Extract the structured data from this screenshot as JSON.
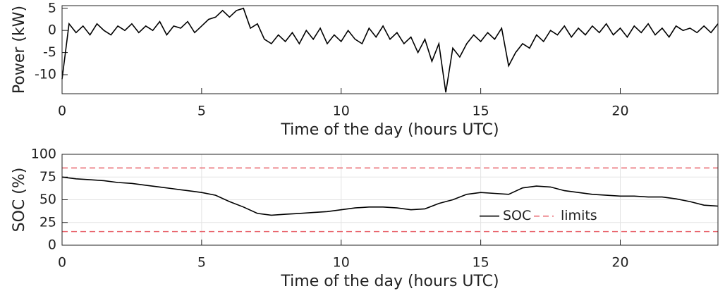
{
  "chart_data": [
    {
      "type": "line",
      "xlabel": "Time of the day (hours UTC)",
      "ylabel": "Power (kW)",
      "xlim": [
        0,
        23.5
      ],
      "xticks": [
        0,
        5,
        10,
        15,
        20
      ],
      "ylim": [
        -14.3,
        5.6
      ],
      "yticks": [
        -10,
        -5,
        0,
        5
      ],
      "grid": false,
      "x": [
        0,
        0.25,
        0.5,
        0.75,
        1,
        1.25,
        1.5,
        1.75,
        2,
        2.25,
        2.5,
        2.75,
        3,
        3.25,
        3.5,
        3.75,
        4,
        4.25,
        4.5,
        4.75,
        5,
        5.25,
        5.5,
        5.75,
        6,
        6.25,
        6.5,
        6.75,
        7,
        7.25,
        7.5,
        7.75,
        8,
        8.25,
        8.5,
        8.75,
        9,
        9.25,
        9.5,
        9.75,
        10,
        10.25,
        10.5,
        10.75,
        11,
        11.25,
        11.5,
        11.75,
        12,
        12.25,
        12.5,
        12.75,
        13,
        13.25,
        13.5,
        13.75,
        14,
        14.25,
        14.5,
        14.75,
        15,
        15.25,
        15.5,
        15.75,
        16,
        16.25,
        16.5,
        16.75,
        17,
        17.25,
        17.5,
        17.75,
        18,
        18.25,
        18.5,
        18.75,
        19,
        19.25,
        19.5,
        19.75,
        20,
        20.25,
        20.5,
        20.75,
        21,
        21.25,
        21.5,
        21.75,
        22,
        22.25,
        22.5,
        22.75,
        23,
        23.25,
        23.5
      ],
      "series": [
        {
          "color": "#000000",
          "values": [
            -11,
            1.5,
            -0.5,
            1,
            -1,
            1.5,
            0,
            -1,
            1,
            0,
            1.5,
            -0.5,
            1,
            0,
            2,
            -1,
            1,
            0.5,
            2,
            -0.5,
            1,
            2.5,
            3,
            4.5,
            3,
            4.5,
            5,
            0.5,
            1.5,
            -2,
            -3,
            -1,
            -2.5,
            -0.5,
            -3,
            0,
            -2,
            0.5,
            -3,
            -1,
            -2.5,
            0,
            -2,
            -3,
            0.5,
            -1.5,
            1,
            -2,
            -0.5,
            -3,
            -1.5,
            -5,
            -2,
            -7,
            -3,
            -14,
            -4,
            -6,
            -3,
            -1,
            -2.5,
            -0.5,
            -2,
            0.5,
            -8,
            -5,
            -3,
            -4,
            -1,
            -2.5,
            0,
            -1,
            1,
            -1.5,
            0.5,
            -1,
            1,
            -0.5,
            1.5,
            -1,
            0.5,
            -1.5,
            1,
            -0.5,
            1.5,
            -1,
            0.5,
            -1.5,
            1,
            0,
            0.5,
            -0.5,
            1,
            -0.5,
            1.5
          ]
        }
      ]
    },
    {
      "type": "line",
      "xlabel": "Time of the day (hours UTC)",
      "ylabel": "SOC (%)",
      "xlim": [
        0,
        23.5
      ],
      "xticks": [
        0,
        5,
        10,
        15,
        20
      ],
      "ylim": [
        0,
        100
      ],
      "yticks": [
        0,
        25,
        50,
        75,
        100
      ],
      "grid": true,
      "legend": "east",
      "x": [
        0,
        0.5,
        1,
        1.5,
        2,
        2.5,
        3,
        3.5,
        4,
        4.5,
        5,
        5.5,
        6,
        6.5,
        7,
        7.5,
        8,
        8.5,
        9,
        9.5,
        10,
        10.5,
        11,
        11.5,
        12,
        12.5,
        13,
        13.5,
        14,
        14.5,
        15,
        15.5,
        16,
        16.5,
        17,
        17.5,
        18,
        18.5,
        19,
        19.5,
        20,
        20.5,
        21,
        21.5,
        22,
        22.5,
        23,
        23.5
      ],
      "series": [
        {
          "name": "SOC",
          "color": "#000000",
          "values": [
            75,
            73,
            72,
            71,
            69,
            68,
            66,
            64,
            62,
            60,
            58,
            55,
            48,
            42,
            35,
            33,
            34,
            35,
            36,
            37,
            39,
            41,
            42,
            42,
            41,
            39,
            40,
            46,
            50,
            56,
            58,
            57,
            56,
            63,
            65,
            64,
            60,
            58,
            56,
            55,
            54,
            54,
            53,
            53,
            51,
            48,
            44,
            43
          ]
        }
      ],
      "hlines": {
        "name": "limits",
        "color": "#e8636b",
        "values": [
          85,
          15
        ]
      }
    }
  ]
}
